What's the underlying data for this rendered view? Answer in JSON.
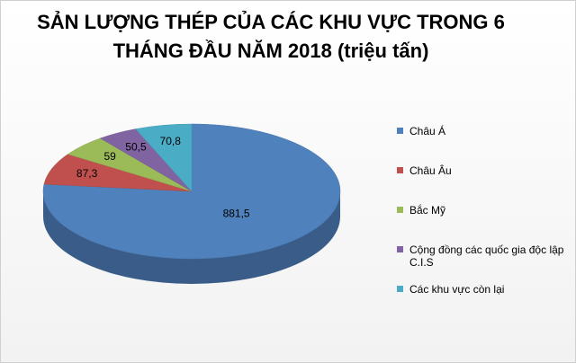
{
  "chart_data": {
    "type": "pie3d",
    "title": "SẢN LƯỢNG THÉP CỦA CÁC KHU VỰC TRONG 6 THÁNG ĐẦU NĂM 2018 (triệu tấn)",
    "categories": [
      "Châu Á",
      "Châu Âu",
      "Bắc Mỹ",
      "Cộng đồng các quốc gia độc lập C.I.S",
      "Các khu vực còn lại"
    ],
    "values": [
      881.5,
      87.3,
      59,
      50.5,
      70.8
    ],
    "value_labels": [
      "881,5",
      "87,3",
      "59",
      "50,5",
      "70,8"
    ],
    "colors": [
      "#4f81bd",
      "#c0504d",
      "#9bbb59",
      "#8064a2",
      "#4bacc6"
    ],
    "legend": "right"
  }
}
